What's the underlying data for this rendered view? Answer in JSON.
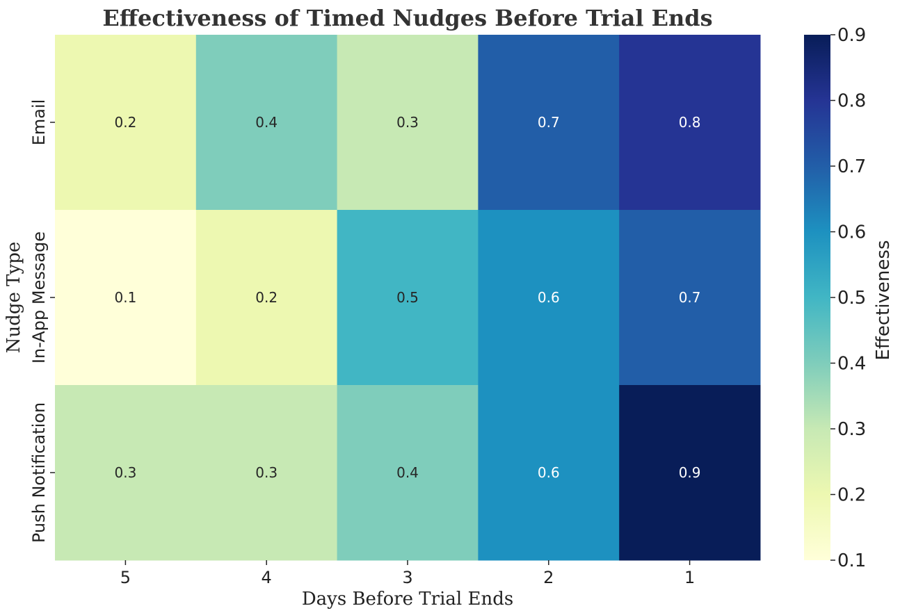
{
  "chart_data": {
    "type": "heatmap",
    "title": "Effectiveness of Timed Nudges Before Trial Ends",
    "xlabel": "Days Before Trial Ends",
    "ylabel": "Nudge Type",
    "x_categories": [
      "5",
      "4",
      "3",
      "2",
      "1"
    ],
    "y_categories": [
      "Email",
      "In-App Message",
      "Push Notification"
    ],
    "values": [
      [
        0.2,
        0.4,
        0.3,
        0.7,
        0.8
      ],
      [
        0.1,
        0.2,
        0.5,
        0.6,
        0.7
      ],
      [
        0.3,
        0.3,
        0.4,
        0.6,
        0.9
      ]
    ],
    "value_labels": [
      [
        "0.2",
        "0.4",
        "0.3",
        "0.7",
        "0.8"
      ],
      [
        "0.1",
        "0.2",
        "0.5",
        "0.6",
        "0.7"
      ],
      [
        "0.3",
        "0.3",
        "0.4",
        "0.6",
        "0.9"
      ]
    ],
    "colorbar": {
      "label": "Effectiveness",
      "range": [
        0.1,
        0.9
      ],
      "ticks": [
        "0.1",
        "0.2",
        "0.3",
        "0.4",
        "0.5",
        "0.6",
        "0.7",
        "0.8",
        "0.9"
      ],
      "colormap": "YlGnBu",
      "colormap_stops": [
        "#ffffd9",
        "#edf8b1",
        "#c7e9b4",
        "#7fcdbb",
        "#41b6c4",
        "#1d91c0",
        "#225ea8",
        "#253494",
        "#081d58"
      ]
    },
    "text_color_dark": "#262626",
    "text_color_light": "#ffffff"
  }
}
